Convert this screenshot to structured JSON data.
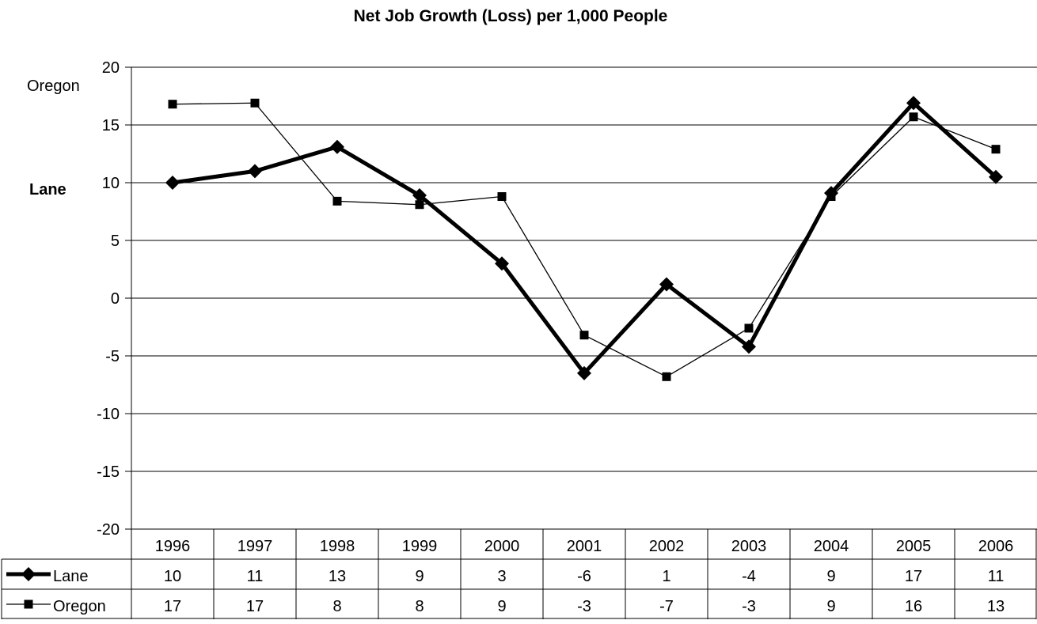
{
  "chart_data": {
    "type": "line",
    "title": "Net Job Growth (Loss) per 1,000 People",
    "categories": [
      "1996",
      "1997",
      "1998",
      "1999",
      "2000",
      "2001",
      "2002",
      "2003",
      "2004",
      "2005",
      "2006"
    ],
    "ylim": [
      -20,
      20
    ],
    "yticks": [
      20,
      15,
      10,
      5,
      0,
      -5,
      -10,
      -15,
      -20
    ],
    "grid": true,
    "legend_placement": "data-table-left",
    "side_labels": {
      "top": "Oregon",
      "middle": "Lane"
    },
    "series": [
      {
        "name": "Lane",
        "marker": "diamond",
        "line": "thick",
        "color": "#000000",
        "values": [
          10,
          11,
          13.1,
          8.9,
          3,
          -6.5,
          1.2,
          -4.2,
          9.1,
          16.9,
          10.5
        ],
        "table_values": [
          "10",
          "11",
          "13",
          "9",
          "3",
          "-6",
          "1",
          "-4",
          "9",
          "17",
          "11"
        ]
      },
      {
        "name": "Oregon",
        "marker": "square",
        "line": "thin",
        "color": "#000000",
        "values": [
          16.8,
          16.9,
          8.4,
          8.1,
          8.8,
          -3.2,
          -6.8,
          -2.6,
          8.8,
          15.7,
          12.9
        ],
        "table_values": [
          "17",
          "17",
          "8",
          "8",
          "9",
          "-3",
          "-7",
          "-3",
          "9",
          "16",
          "13"
        ]
      }
    ]
  }
}
